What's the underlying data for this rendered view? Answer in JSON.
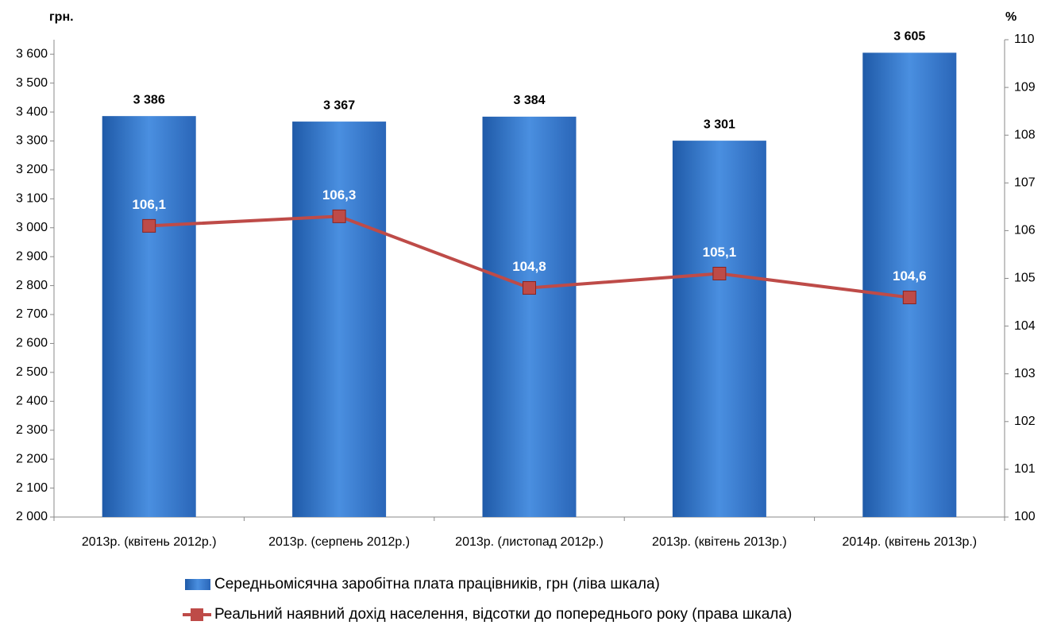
{
  "chart_data": {
    "type": "bar_line",
    "y_unit": "грн.",
    "y2_unit": "%",
    "categories": [
      "2013р. (квітень  2012р.)",
      "2013р. (серпень 2012р.)",
      "2013р. (листопад  2012р.)",
      "2013р. (квітень  2013р.)",
      "2014р. (квітень  2013р.)"
    ],
    "series": [
      {
        "name": "Середньомісячна заробітна плата працівників, грн (ліва шкала)",
        "type": "bar",
        "color": "#3a7fd4",
        "values": [
          3386,
          3367,
          3384,
          3301,
          3605
        ],
        "value_labels": [
          "3 386",
          "3 367",
          "3 384",
          "3 301",
          "3 605"
        ]
      },
      {
        "name": "Реальний наявний дохід населення, відсотки до попереднього року (права шкала)",
        "type": "line",
        "axis": "y2",
        "color": "#be4b48",
        "values": [
          106.1,
          106.3,
          104.8,
          105.1,
          104.6
        ],
        "value_labels": [
          "106,1",
          "106,3",
          "104,8",
          "105,1",
          "104,6"
        ]
      }
    ],
    "ylim": [
      2000,
      3650
    ],
    "yticks": [
      {
        "value": 2000,
        "label": "2 000"
      },
      {
        "value": 2100,
        "label": "2 100"
      },
      {
        "value": 2200,
        "label": "2 200"
      },
      {
        "value": 2300,
        "label": "2 300"
      },
      {
        "value": 2400,
        "label": "2 400"
      },
      {
        "value": 2500,
        "label": "2 500"
      },
      {
        "value": 2600,
        "label": "2 600"
      },
      {
        "value": 2700,
        "label": "2 700"
      },
      {
        "value": 2800,
        "label": "2 800"
      },
      {
        "value": 2900,
        "label": "2 900"
      },
      {
        "value": 3000,
        "label": "3 000"
      },
      {
        "value": 3100,
        "label": "3 100"
      },
      {
        "value": 3200,
        "label": "3 200"
      },
      {
        "value": 3300,
        "label": "3 300"
      },
      {
        "value": 3400,
        "label": "3 400"
      },
      {
        "value": 3500,
        "label": "3 500"
      },
      {
        "value": 3600,
        "label": "3 600"
      }
    ],
    "y2lim": [
      100,
      110
    ],
    "y2ticks": [
      100,
      101,
      102,
      103,
      104,
      105,
      106,
      107,
      108,
      109,
      110
    ]
  }
}
